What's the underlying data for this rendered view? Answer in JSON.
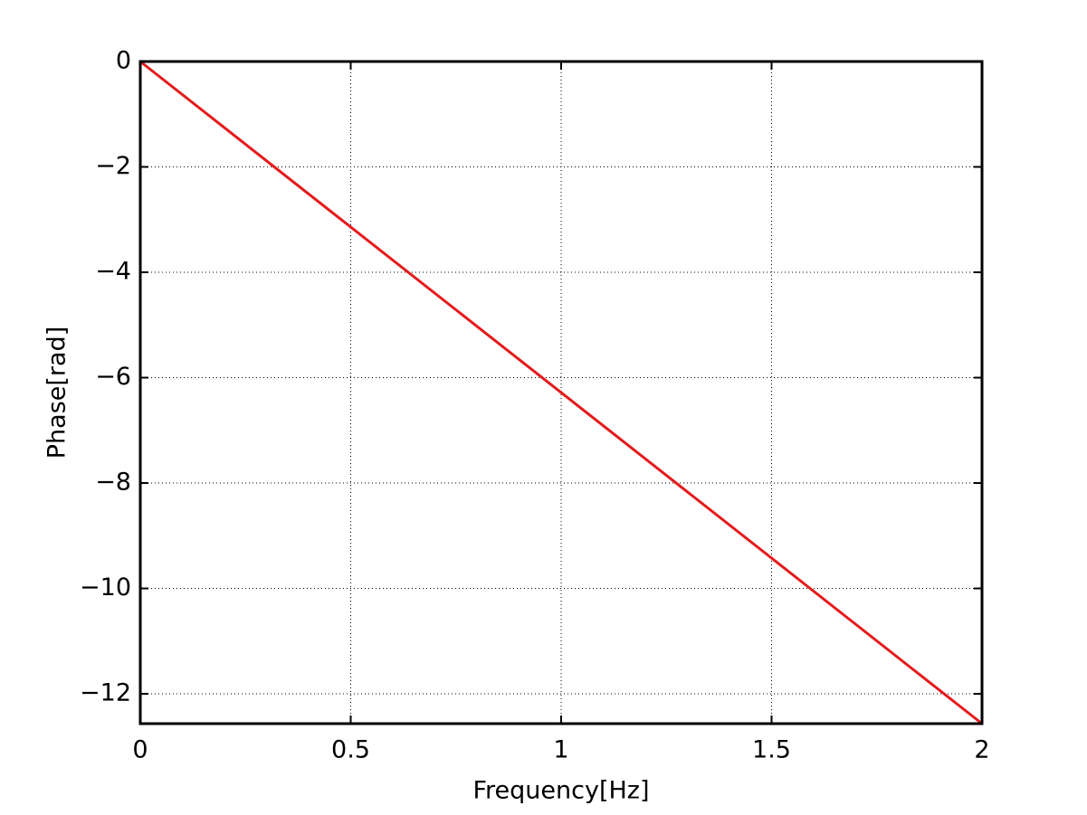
{
  "chart_data": {
    "type": "line",
    "xlabel": "Frequency[Hz]",
    "ylabel": "Phase[rad]",
    "x": [
      0,
      2
    ],
    "series": [
      {
        "color": "#e41a1c",
        "values": [
          0,
          -12.566
        ]
      }
    ],
    "xlim": [
      0,
      2
    ],
    "xticks": [
      0,
      0.5,
      1,
      1.5,
      2
    ],
    "ylim": [
      -12.566,
      0
    ],
    "yticks": [
      {
        "value": -12,
        "label": "−12"
      },
      {
        "value": -10,
        "label": "−10"
      },
      {
        "value": -8,
        "label": "−8"
      },
      {
        "value": -6,
        "label": "−6"
      },
      {
        "value": -4,
        "label": "−4"
      },
      {
        "value": -2,
        "label": "−2"
      },
      0
    ],
    "grid": true
  }
}
